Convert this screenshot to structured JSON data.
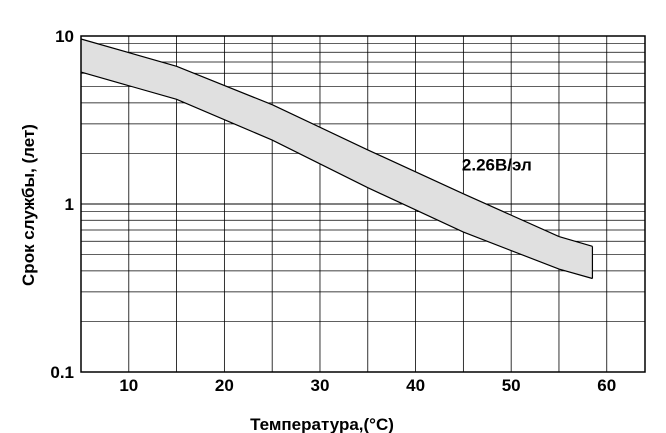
{
  "chart_data": {
    "type": "area",
    "xlabel": "Температура,(°C)",
    "ylabel": "Срок службы, (лет)",
    "x_range": [
      5,
      64
    ],
    "y_range": [
      0.1,
      10
    ],
    "y_scale": "log",
    "grid": true,
    "x_ticks": [
      10,
      20,
      30,
      40,
      50,
      60
    ],
    "x_tick_labels": [
      "10",
      "20",
      "30",
      "40",
      "50",
      "60"
    ],
    "y_ticks": [
      0.1,
      1,
      10
    ],
    "y_tick_labels": [
      "0.1",
      "1",
      "10"
    ],
    "series": [
      {
        "x": [
          5,
          15,
          25,
          35,
          45,
          55,
          58.5
        ],
        "y": [
          9.6,
          6.6,
          3.9,
          2.1,
          1.15,
          0.64,
          0.56
        ],
        "style": "solid_upper_boundary"
      },
      {
        "x": [
          5,
          15,
          25,
          35,
          45,
          55,
          58.5
        ],
        "y": [
          6.1,
          4.2,
          2.4,
          1.25,
          0.68,
          0.41,
          0.36
        ],
        "style": "solid_lower_boundary"
      }
    ],
    "band_color": "#e0e0e0",
    "annotations": [
      {
        "text": "2.26B/эл",
        "x": 48.5,
        "y": 1.58
      }
    ]
  }
}
